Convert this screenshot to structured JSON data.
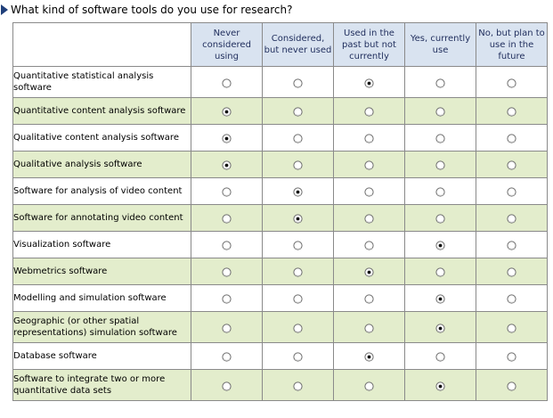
{
  "question": {
    "text": "What kind of software tools do you use for research?",
    "arrow_icon": "triangle-right-icon",
    "arrow_color": "#1f3f7a"
  },
  "columns": [
    {
      "label": "Never considered using"
    },
    {
      "label": "Considered, but never used"
    },
    {
      "label": "Used in the past but not currently"
    },
    {
      "label": "Yes, currently use"
    },
    {
      "label": "No, but plan to use in the future"
    }
  ],
  "rows": [
    {
      "label": "Quantitative statistical analysis software",
      "selected": 2
    },
    {
      "label": "Quantitative content analysis software",
      "selected": 0
    },
    {
      "label": "Qualitative content analysis software",
      "selected": 0
    },
    {
      "label": "Qualitative analysis software",
      "selected": 0
    },
    {
      "label": "Software for analysis of video content",
      "selected": 1
    },
    {
      "label": "Software for annotating video content",
      "selected": 1
    },
    {
      "label": "Visualization software",
      "selected": 3
    },
    {
      "label": "Webmetrics software",
      "selected": 2
    },
    {
      "label": "Modelling and simulation software",
      "selected": 3
    },
    {
      "label": "Geographic (or other spatial representations) simulation software",
      "selected": 3
    },
    {
      "label": "Database software",
      "selected": 2
    },
    {
      "label": "Software to integrate two or more quantitative data sets",
      "selected": 3
    }
  ],
  "colors": {
    "header_bg": "#d9e3f0",
    "header_text": "#1f2d5c",
    "row_alt_bg": "#e3edcc",
    "border": "#8a8a8a"
  }
}
